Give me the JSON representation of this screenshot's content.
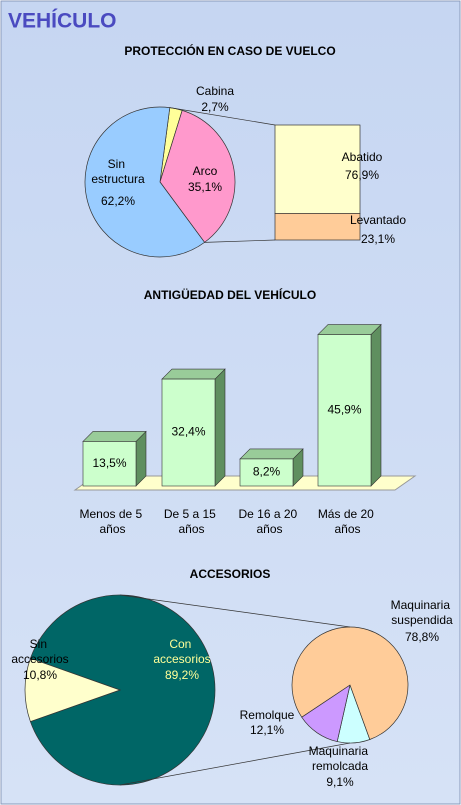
{
  "title": "VEHÍCULO",
  "chart_data": [
    {
      "type": "pie-of-bar",
      "title": "PROTECCIÓN EN CASO DE VUELCO",
      "categories": [
        "Cabina",
        "Arco",
        "Sin estructura"
      ],
      "values": [
        2.7,
        35.1,
        62.2
      ],
      "value_labels": [
        "2,7%",
        "35,1%",
        "62,2%"
      ],
      "colors": [
        "#ffff99",
        "#ff99cc",
        "#99ccff"
      ],
      "breakdown": {
        "categories": [
          "Abatido",
          "Levantado"
        ],
        "values": [
          76.9,
          23.1
        ],
        "value_labels": [
          "76,9%",
          "23,1%"
        ],
        "colors": [
          "#ffffcc",
          "#ffcc99"
        ]
      }
    },
    {
      "type": "bar3d",
      "title": "ANTIGÜEDAD DEL VEHÍCULO",
      "categories": [
        "Menos de 5 años",
        "De 5 a 15 años",
        "De 16 a 20 años",
        "Más de 20 años"
      ],
      "values": [
        13.5,
        32.4,
        8.2,
        45.9
      ],
      "value_labels": [
        "13,5%",
        "32,4%",
        "8,2%",
        "45,9%"
      ],
      "color": "#ccffcc"
    },
    {
      "type": "pie-of-pie",
      "title": "ACCESORIOS",
      "categories": [
        "Con accesorios",
        "Sin accesorios"
      ],
      "values": [
        89.2,
        10.8
      ],
      "value_labels": [
        "89,2%",
        "10,8%"
      ],
      "colors": [
        "#006666",
        "#ffffcc"
      ],
      "breakdown": {
        "categories": [
          "Maquinaria remolcada",
          "Remolque",
          "Maquinaria suspendida"
        ],
        "values": [
          9.1,
          12.1,
          78.8
        ],
        "value_labels": [
          "9,1%",
          "12,1%",
          "78,8%"
        ],
        "colors": [
          "#ccffff",
          "#cc99ff",
          "#ffcc99"
        ]
      }
    }
  ]
}
